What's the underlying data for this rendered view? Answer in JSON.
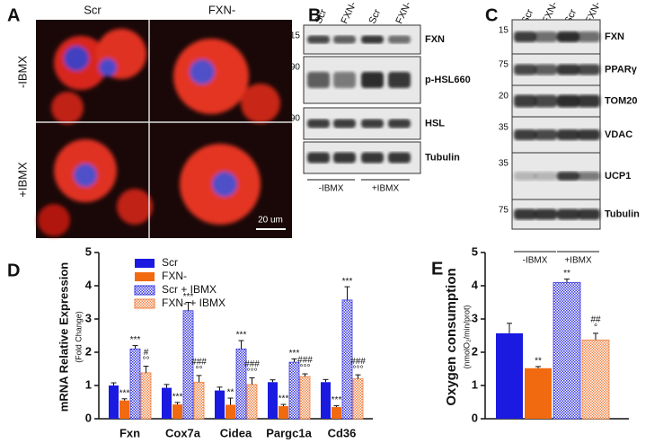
{
  "panels": {
    "a": {
      "label": "A",
      "columns": [
        "Scr",
        "FXN-"
      ],
      "rows": [
        "-IBMX",
        "+IBMX"
      ],
      "scale_bar": "20 um"
    },
    "b": {
      "label": "B",
      "lanes": [
        "Scr",
        "FXN-",
        "Scr",
        "FXN-"
      ],
      "proteins": [
        "FXN",
        "p-HSL660",
        "HSL",
        "Tubulin"
      ],
      "markers": [
        "15",
        "90",
        "90"
      ],
      "groups": [
        "-IBMX",
        "+IBMX"
      ]
    },
    "c": {
      "label": "C",
      "lanes": [
        "Scr",
        "FXN-",
        "Scr",
        "FXN-"
      ],
      "proteins": [
        "FXN",
        "PPARγ",
        "TOM20",
        "VDAC",
        "UCP1",
        "Tubulin"
      ],
      "markers": [
        "15",
        "75",
        "20",
        "35",
        "35",
        "75"
      ],
      "groups": [
        "-IBMX",
        "+IBMX"
      ]
    }
  },
  "chart_data": [
    {
      "type": "bar",
      "label": "D",
      "ylabel": "mRNA Relative Expression",
      "ysublabel": "(Fold Change)",
      "categories": [
        "Fxn",
        "Cox7a",
        "Cidea",
        "Pargc1a",
        "Cd36"
      ],
      "series": [
        {
          "name": "Scr",
          "color": "#1a1ae0",
          "pattern": false,
          "values": [
            1.0,
            0.93,
            0.85,
            1.1,
            1.1
          ],
          "errors": [
            0.08,
            0.1,
            0.1,
            0.07,
            0.08
          ],
          "annotations": [
            [],
            [],
            [],
            [],
            []
          ]
        },
        {
          "name": "FXN-",
          "color": "#f26a10",
          "pattern": false,
          "values": [
            0.55,
            0.43,
            0.42,
            0.38,
            0.35
          ],
          "errors": [
            0.05,
            0.06,
            0.2,
            0.05,
            0.04
          ],
          "annotations": [
            [
              "***"
            ],
            [
              "***"
            ],
            [
              "**"
            ],
            [
              "***"
            ],
            [
              "***"
            ]
          ]
        },
        {
          "name": "Scr + IBMX",
          "color": "#3a3ae0",
          "pattern": true,
          "values": [
            2.1,
            3.25,
            2.1,
            1.7,
            3.57
          ],
          "errors": [
            0.1,
            0.25,
            0.25,
            0.1,
            0.4
          ],
          "annotations": [
            [
              "***"
            ],
            [
              "***"
            ],
            [
              "***"
            ],
            [
              "***"
            ],
            [
              "***"
            ]
          ]
        },
        {
          "name": "FXN- + IBMX",
          "color": "#f08040",
          "pattern": true,
          "values": [
            1.38,
            1.1,
            1.03,
            1.27,
            1.2
          ],
          "errors": [
            0.2,
            0.2,
            0.2,
            0.08,
            0.12
          ],
          "annotations": [
            [
              "#",
              "°°"
            ],
            [
              "###",
              "°°"
            ],
            [
              "###",
              "°°°"
            ],
            [
              "###",
              "°°°"
            ],
            [
              "###",
              "°°°"
            ]
          ]
        }
      ],
      "ylim": [
        0,
        5
      ],
      "yticks": [
        0,
        1,
        2,
        3,
        4,
        5
      ],
      "legend": "top-left"
    },
    {
      "type": "bar",
      "label": "E",
      "ylabel": "Oxygen consumption",
      "ysublabel": "(nmolO₂/min/prot)",
      "values": [
        2.57,
        1.52,
        4.1,
        2.37
      ],
      "errors": [
        0.3,
        0.05,
        0.1,
        0.2
      ],
      "colors": [
        "#1a1ae0",
        "#f26a10",
        "#3a3ae0",
        "#f08040"
      ],
      "patterns": [
        false,
        false,
        true,
        true
      ],
      "annotations": [
        [],
        [
          "**"
        ],
        [
          "**"
        ],
        [
          "##",
          "°"
        ]
      ],
      "ylim": [
        0,
        5
      ],
      "yticks": [
        0,
        1,
        2,
        3,
        4,
        5
      ]
    }
  ]
}
